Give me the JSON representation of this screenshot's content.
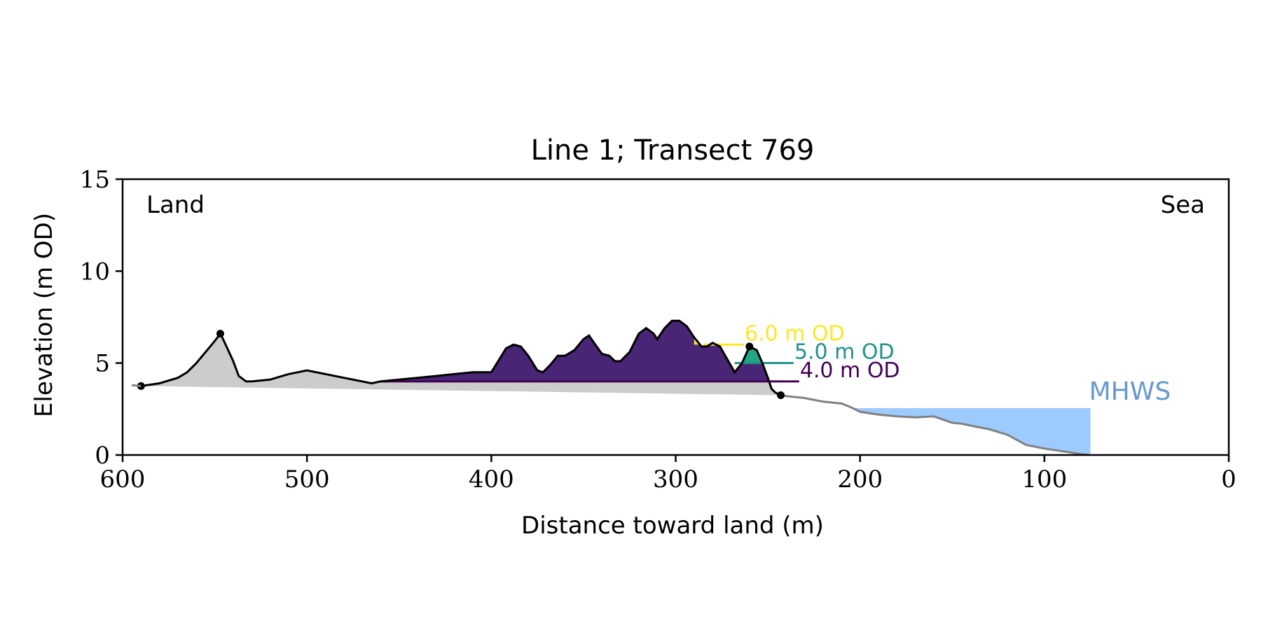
{
  "chart_data": {
    "type": "area",
    "title": "Line 1; Transect 769",
    "xlabel": "Distance toward land (m)",
    "ylabel": "Elevation (m OD)",
    "xlim": [
      600,
      0
    ],
    "ylim": [
      0,
      15
    ],
    "x_ticks": [
      600,
      500,
      400,
      300,
      200,
      100,
      0
    ],
    "y_ticks": [
      0,
      5,
      10,
      15
    ],
    "grid": false,
    "corner_labels": {
      "left": "Land",
      "right": "Sea"
    },
    "profile": {
      "x": [
        595,
        590,
        580,
        570,
        565,
        560,
        555,
        550,
        547,
        545,
        540,
        537,
        533,
        530,
        520,
        510,
        500,
        490,
        480,
        470,
        465,
        460,
        450,
        440,
        430,
        420,
        410,
        400,
        392,
        388,
        384,
        380,
        375,
        372,
        368,
        364,
        360,
        355,
        350,
        347,
        345,
        340,
        336,
        333,
        330,
        325,
        320,
        316,
        312,
        310,
        306,
        302,
        298,
        294,
        290,
        286,
        283,
        280,
        276,
        272,
        268,
        264,
        260,
        256,
        253,
        250,
        248,
        246,
        243,
        240,
        230,
        220,
        210,
        205,
        200,
        190,
        180,
        170,
        160,
        150,
        145,
        140,
        130,
        120,
        110,
        100,
        90,
        80,
        76
      ],
      "y": [
        3.8,
        3.75,
        3.9,
        4.2,
        4.5,
        5.0,
        5.6,
        6.2,
        6.6,
        6.2,
        5.1,
        4.3,
        4.0,
        4.0,
        4.1,
        4.4,
        4.6,
        4.4,
        4.2,
        4.0,
        3.9,
        4.0,
        4.1,
        4.2,
        4.3,
        4.4,
        4.5,
        4.5,
        5.8,
        6.0,
        5.9,
        5.4,
        4.6,
        4.5,
        4.9,
        5.4,
        5.4,
        5.7,
        6.3,
        6.5,
        6.2,
        5.5,
        5.4,
        5.1,
        5.1,
        5.6,
        6.6,
        6.9,
        6.6,
        6.3,
        6.9,
        7.3,
        7.3,
        7.0,
        6.4,
        5.9,
        5.9,
        6.1,
        5.9,
        5.2,
        4.5,
        5.0,
        5.9,
        5.7,
        5.0,
        4.2,
        3.6,
        3.4,
        3.25,
        3.2,
        3.1,
        2.9,
        2.8,
        2.6,
        2.35,
        2.2,
        2.1,
        2.05,
        2.1,
        1.75,
        1.7,
        1.6,
        1.4,
        1.1,
        0.55,
        0.35,
        0.2,
        0.05,
        0.0
      ]
    },
    "key_points": [
      {
        "x": 590,
        "y": 3.75
      },
      {
        "x": 547,
        "y": 6.6
      },
      {
        "x": 260,
        "y": 5.9
      },
      {
        "x": 243,
        "y": 3.25
      }
    ],
    "dune_toe_baseline": [
      [
        590,
        3.75
      ],
      [
        243,
        3.25
      ]
    ],
    "od_levels": [
      {
        "level": 6.0,
        "label": "6.0 m OD",
        "color": "#fde725",
        "x_from": 285,
        "x_to": 263
      },
      {
        "level": 5.0,
        "label": "5.0 m OD",
        "color": "#21918c",
        "x_from": 268,
        "x_to": 236
      },
      {
        "level": 4.0,
        "label": "4.0 m OD",
        "color": "#440154",
        "x_from": 460,
        "x_to": 233
      }
    ],
    "mhws": {
      "label": "MHWS",
      "level": 2.55,
      "x_seaward_limit": 75,
      "color": "#9ecbff",
      "label_color": "#6699cc"
    },
    "colors": {
      "profile_land": "#000000",
      "profile_sea": "#808080",
      "dune_fill": "#cccccc",
      "level_4": "#482575",
      "level_5": "#22a884",
      "level_6": "#fde725"
    }
  }
}
